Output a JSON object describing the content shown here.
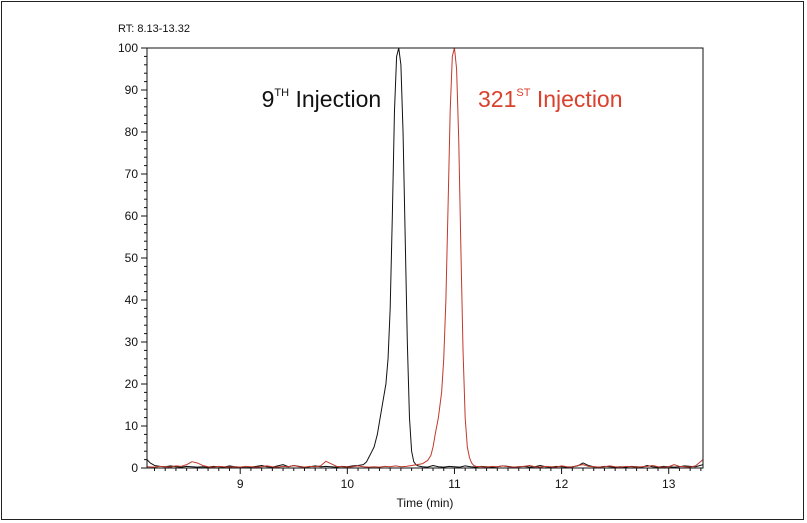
{
  "chart_data": {
    "type": "line",
    "title": "",
    "range_label": "RT: 8.13-13.32",
    "xlabel": "Time (min)",
    "ylabel": "",
    "xlim": [
      8.13,
      13.32
    ],
    "ylim": [
      0,
      100
    ],
    "x_ticks": [
      9,
      10,
      11,
      12,
      13
    ],
    "y_ticks": [
      0,
      10,
      20,
      30,
      40,
      50,
      60,
      70,
      80,
      90,
      100
    ],
    "grid": false,
    "annotations": [
      {
        "main": "9",
        "sup": "TH",
        "rest": " Injection",
        "color": "#111111",
        "x": 9.2,
        "y": 86
      },
      {
        "main": "321",
        "sup": "ST",
        "rest": " Injection",
        "color": "#d9412c",
        "x": 11.22,
        "y": 86
      }
    ],
    "series": [
      {
        "color": "#111111",
        "x": [
          8.13,
          8.16,
          8.2,
          8.25,
          8.3,
          8.35,
          8.4,
          8.45,
          8.5,
          8.55,
          8.6,
          8.65,
          8.7,
          8.75,
          8.8,
          8.85,
          8.9,
          8.95,
          9.0,
          9.05,
          9.1,
          9.15,
          9.2,
          9.25,
          9.3,
          9.35,
          9.4,
          9.45,
          9.5,
          9.55,
          9.6,
          9.65,
          9.7,
          9.75,
          9.8,
          9.85,
          9.9,
          9.95,
          10.0,
          10.05,
          10.1,
          10.15,
          10.18,
          10.2,
          10.22,
          10.25,
          10.28,
          10.3,
          10.32,
          10.34,
          10.36,
          10.38,
          10.4,
          10.42,
          10.44,
          10.46,
          10.48,
          10.5,
          10.52,
          10.54,
          10.56,
          10.58,
          10.6,
          10.62,
          10.64,
          10.66,
          10.7,
          10.75,
          10.8,
          10.85,
          10.9,
          10.95,
          11.0,
          11.05,
          11.1,
          11.15,
          11.2,
          11.25,
          11.3,
          11.35,
          11.4,
          11.45,
          11.5,
          11.55,
          11.6,
          11.65,
          11.7,
          11.75,
          11.8,
          11.85,
          11.9,
          11.95,
          12.0,
          12.05,
          12.1,
          12.15,
          12.2,
          12.25,
          12.3,
          12.35,
          12.4,
          12.45,
          12.5,
          12.55,
          12.6,
          12.65,
          12.7,
          12.75,
          12.8,
          12.85,
          12.9,
          12.95,
          13.0,
          13.05,
          13.1,
          13.15,
          13.2,
          13.25,
          13.32
        ],
        "y": [
          2,
          1.2,
          0.6,
          0.4,
          0.3,
          0.5,
          0.3,
          0.2,
          0.4,
          0.3,
          0.2,
          0.3,
          0.2,
          0.4,
          0.3,
          0.2,
          0.5,
          0.3,
          0.2,
          0.3,
          0.2,
          0.4,
          0.6,
          0.3,
          0.2,
          0.5,
          0.8,
          0.3,
          0.6,
          0.4,
          0.2,
          0.3,
          0.5,
          0.3,
          0.4,
          0.3,
          0.2,
          0.4,
          0.3,
          0.5,
          0.6,
          0.8,
          1.5,
          2.5,
          3.5,
          5,
          8,
          11,
          14,
          17,
          20,
          26,
          38,
          60,
          85,
          98,
          100,
          96,
          80,
          55,
          30,
          12,
          4,
          1.5,
          0.8,
          0.5,
          0.3,
          0.2,
          0.6,
          0.3,
          0.2,
          0.4,
          0.3,
          0.2,
          0.5,
          0.3,
          0.2,
          0.4,
          0.3,
          0.2,
          0.3,
          0.5,
          0.4,
          0.2,
          0.3,
          0.4,
          0.2,
          0.3,
          0.6,
          0.3,
          0.2,
          0.4,
          0.3,
          0.2,
          0.3,
          0.5,
          1.2,
          0.6,
          0.3,
          0.2,
          0.4,
          0.3,
          0.2,
          0.3,
          0.2,
          0.4,
          0.3,
          0.2,
          0.6,
          0.3,
          0.2,
          0.4,
          0.3,
          0.2,
          0.3,
          0.5,
          0.4,
          0.3,
          0.8
        ]
      },
      {
        "color": "#c0392b",
        "x": [
          8.13,
          8.2,
          8.25,
          8.3,
          8.35,
          8.4,
          8.45,
          8.5,
          8.55,
          8.6,
          8.65,
          8.7,
          8.75,
          8.8,
          8.85,
          8.9,
          8.95,
          9.0,
          9.05,
          9.1,
          9.15,
          9.2,
          9.25,
          9.3,
          9.35,
          9.4,
          9.45,
          9.5,
          9.55,
          9.6,
          9.65,
          9.7,
          9.75,
          9.8,
          9.85,
          9.9,
          9.95,
          10.0,
          10.05,
          10.1,
          10.15,
          10.2,
          10.25,
          10.3,
          10.35,
          10.4,
          10.45,
          10.5,
          10.55,
          10.6,
          10.65,
          10.7,
          10.75,
          10.78,
          10.8,
          10.82,
          10.85,
          10.88,
          10.9,
          10.92,
          10.94,
          10.96,
          10.98,
          11.0,
          11.02,
          11.04,
          11.06,
          11.08,
          11.1,
          11.12,
          11.14,
          11.16,
          11.18,
          11.2,
          11.25,
          11.3,
          11.35,
          11.4,
          11.45,
          11.5,
          11.55,
          11.6,
          11.65,
          11.7,
          11.75,
          11.8,
          11.85,
          11.9,
          11.95,
          12.0,
          12.05,
          12.1,
          12.15,
          12.2,
          12.25,
          12.3,
          12.35,
          12.4,
          12.45,
          12.5,
          12.55,
          12.6,
          12.65,
          12.7,
          12.75,
          12.8,
          12.85,
          12.9,
          12.95,
          13.0,
          13.05,
          13.1,
          13.15,
          13.2,
          13.25,
          13.32
        ],
        "y": [
          0.3,
          0.2,
          0.4,
          0.3,
          0.2,
          0.5,
          0.4,
          0.8,
          1.5,
          1.2,
          0.6,
          0.3,
          0.2,
          0.4,
          0.3,
          0.2,
          0.3,
          0.2,
          0.4,
          0.3,
          0.2,
          0.3,
          0.5,
          0.3,
          0.2,
          0.4,
          0.3,
          0.6,
          0.3,
          0.2,
          0.4,
          0.3,
          0.5,
          1.6,
          1.0,
          0.4,
          0.3,
          0.2,
          0.3,
          0.5,
          0.3,
          0.2,
          0.3,
          0.2,
          0.4,
          0.3,
          0.5,
          0.3,
          0.4,
          0.6,
          0.8,
          1.0,
          1.8,
          3,
          5,
          8,
          12,
          18,
          26,
          40,
          62,
          85,
          98,
          100,
          95,
          78,
          52,
          28,
          12,
          5,
          2.5,
          1.2,
          0.6,
          0.4,
          0.3,
          0.2,
          0.4,
          0.3,
          0.5,
          0.3,
          0.2,
          0.3,
          0.4,
          0.6,
          0.3,
          0.2,
          0.4,
          0.3,
          0.2,
          0.5,
          0.3,
          0.2,
          0.6,
          0.8,
          0.4,
          0.3,
          0.2,
          0.3,
          0.5,
          0.3,
          0.2,
          0.4,
          0.3,
          0.2,
          0.3,
          0.4,
          0.6,
          0.3,
          0.2,
          0.3,
          0.8,
          0.4,
          0.3,
          0.2,
          0.5,
          2.0
        ]
      }
    ]
  }
}
